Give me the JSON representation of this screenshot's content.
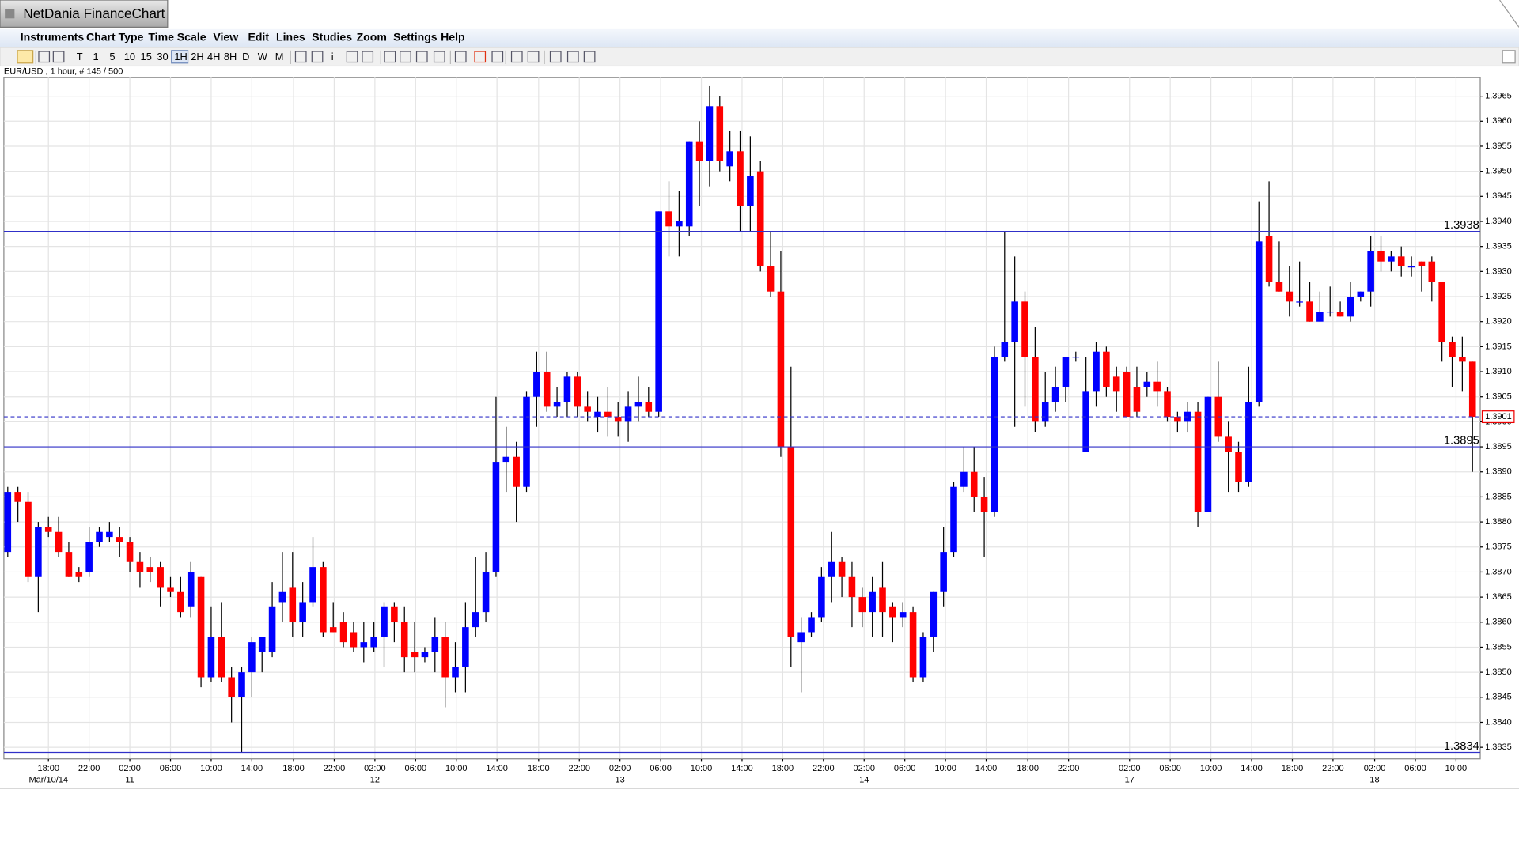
{
  "app": {
    "title": "NetDania FinanceChart",
    "menu": [
      "Instruments",
      "Chart Type",
      "Time Scale",
      "View",
      "Edit",
      "Lines",
      "Studies",
      "Zoom",
      "Settings",
      "Help"
    ],
    "toolbar": [
      "T",
      "1",
      "5",
      "10",
      "15",
      "30",
      "1H",
      "2H",
      "4H",
      "8H",
      "D",
      "W",
      "M",
      "i"
    ]
  },
  "chart_data": {
    "type": "candlestick",
    "title": "EUR/USD , 1 hour, # 145 / 500",
    "up_color": "#0000ff",
    "down_color": "#ff0000",
    "grid": true,
    "ylim": [
      1.38327,
      1.39687
    ],
    "yticks": [
      1.3835,
      {
        "value": 1.384,
        "label": "1.3840"
      },
      1.3845,
      {
        "value": 1.385,
        "label": "1.3850"
      },
      1.3855,
      {
        "value": 1.386,
        "label": "1.3860"
      },
      1.3865,
      {
        "value": 1.387,
        "label": "1.3870"
      },
      1.3875,
      {
        "value": 1.388,
        "label": "1.3880"
      },
      1.3885,
      {
        "value": 1.389,
        "label": "1.3890"
      },
      1.3895,
      {
        "value": 1.39,
        "label": "1.3900"
      },
      1.3905,
      {
        "value": 1.391,
        "label": "1.3910"
      },
      1.3915,
      {
        "value": 1.392,
        "label": "1.3920"
      },
      1.3925,
      {
        "value": 1.393,
        "label": "1.3930"
      },
      1.3935,
      {
        "value": 1.394,
        "label": "1.3940"
      },
      1.3945,
      {
        "value": 1.395,
        "label": "1.3950"
      },
      1.3955,
      {
        "value": 1.396,
        "label": "1.3960"
      },
      1.3965
    ],
    "x": [
      "18:00",
      "22:00",
      "02:00",
      "06:00",
      "10:00",
      "14:00",
      "18:00",
      "22:00",
      "02:00",
      "06:00",
      "10:00",
      "14:00",
      "18:00",
      "22:00",
      "02:00",
      "06:00",
      "10:00",
      "14:00",
      "18:00",
      "22:00",
      "02:00",
      "06:00",
      "10:00",
      "14:00",
      "18:00",
      "22:00",
      "02:00",
      "06:00",
      "10:00",
      "14:00",
      "18:00",
      "22:00",
      "02:00",
      "06:00",
      "10:00"
    ],
    "x_dates": [
      "Mar/10/14",
      null,
      "11",
      null,
      null,
      null,
      null,
      null,
      "12",
      null,
      null,
      null,
      null,
      null,
      "13",
      null,
      null,
      null,
      null,
      null,
      "14",
      null,
      null,
      null,
      null,
      null,
      "17",
      null,
      null,
      null,
      null,
      null,
      "18",
      null,
      null
    ],
    "lines": [
      {
        "value": 1.3938
      },
      {
        "value": 1.3895
      },
      {
        "value": 1.3834
      }
    ],
    "last": 1.3901,
    "last_label": "1.3901",
    "ohlc": [
      [
        1.3874,
        1.3887,
        1.3873,
        1.3886
      ],
      [
        1.3886,
        1.3887,
        1.388,
        1.3884
      ],
      [
        1.3884,
        1.3886,
        1.3868,
        1.3869
      ],
      [
        1.3869,
        1.388,
        1.3862,
        1.3879
      ],
      [
        1.3879,
        1.3881,
        1.3877,
        1.3878
      ],
      [
        1.3878,
        1.3881,
        1.3873,
        1.3874
      ],
      [
        1.3874,
        1.3876,
        1.3869,
        1.3869
      ],
      [
        1.387,
        1.3871,
        1.3868,
        1.3869
      ],
      [
        1.387,
        1.3879,
        1.3869,
        1.3876
      ],
      [
        1.3876,
        1.3879,
        1.3875,
        1.3878
      ],
      [
        1.3877,
        1.388,
        1.3876,
        1.3878
      ],
      [
        1.3877,
        1.3879,
        1.3873,
        1.3876
      ],
      [
        1.3876,
        1.3877,
        1.387,
        1.3872
      ],
      [
        1.3872,
        1.3874,
        1.3867,
        1.387
      ],
      [
        1.3871,
        1.3873,
        1.3868,
        1.387
      ],
      [
        1.3871,
        1.3872,
        1.3863,
        1.3867
      ],
      [
        1.3867,
        1.3869,
        1.3865,
        1.3866
      ],
      [
        1.3866,
        1.3869,
        1.3861,
        1.3862
      ],
      [
        1.3863,
        1.3872,
        1.3861,
        1.387
      ],
      [
        1.3869,
        1.3869,
        1.3847,
        1.3849
      ],
      [
        1.3849,
        1.3863,
        1.3848,
        1.3857
      ],
      [
        1.3857,
        1.3864,
        1.3848,
        1.3849
      ],
      [
        1.3849,
        1.3851,
        1.384,
        1.3845
      ],
      [
        1.3845,
        1.3851,
        1.3834,
        1.385
      ],
      [
        1.385,
        1.3857,
        1.3845,
        1.3856
      ],
      [
        1.3854,
        1.3857,
        1.385,
        1.3857
      ],
      [
        1.3854,
        1.3868,
        1.3853,
        1.3863
      ],
      [
        1.3864,
        1.3874,
        1.386,
        1.3866
      ],
      [
        1.3867,
        1.3874,
        1.3857,
        1.386
      ],
      [
        1.386,
        1.3868,
        1.3857,
        1.3864
      ],
      [
        1.3864,
        1.3877,
        1.3863,
        1.3871
      ],
      [
        1.3871,
        1.3872,
        1.3857,
        1.3858
      ],
      [
        1.3859,
        1.3864,
        1.3858,
        1.3858
      ],
      [
        1.386,
        1.3862,
        1.3855,
        1.3856
      ],
      [
        1.3858,
        1.386,
        1.3854,
        1.3855
      ],
      [
        1.3855,
        1.386,
        1.3852,
        1.3856
      ],
      [
        1.3855,
        1.386,
        1.3854,
        1.3857
      ],
      [
        1.3857,
        1.3864,
        1.3851,
        1.3863
      ],
      [
        1.3863,
        1.3864,
        1.3856,
        1.386
      ],
      [
        1.386,
        1.3863,
        1.385,
        1.3853
      ],
      [
        1.3854,
        1.386,
        1.385,
        1.3853
      ],
      [
        1.3853,
        1.3855,
        1.3852,
        1.3854
      ],
      [
        1.3854,
        1.3861,
        1.385,
        1.3857
      ],
      [
        1.3857,
        1.386,
        1.3843,
        1.3849
      ],
      [
        1.3849,
        1.3856,
        1.3846,
        1.3851
      ],
      [
        1.3851,
        1.3864,
        1.3846,
        1.3859
      ],
      [
        1.3859,
        1.3873,
        1.3857,
        1.3862
      ],
      [
        1.3862,
        1.3874,
        1.386,
        1.387
      ],
      [
        1.387,
        1.3905,
        1.3869,
        1.3892
      ],
      [
        1.3892,
        1.3899,
        1.3886,
        1.3893
      ],
      [
        1.3893,
        1.3896,
        1.388,
        1.3887
      ],
      [
        1.3887,
        1.3906,
        1.3886,
        1.3905
      ],
      [
        1.3905,
        1.3914,
        1.3899,
        1.391
      ],
      [
        1.391,
        1.3914,
        1.3902,
        1.3903
      ],
      [
        1.3903,
        1.3907,
        1.3901,
        1.3904
      ],
      [
        1.3904,
        1.391,
        1.3901,
        1.3909
      ],
      [
        1.3909,
        1.391,
        1.3901,
        1.3903
      ],
      [
        1.3903,
        1.3906,
        1.39,
        1.3902
      ],
      [
        1.3901,
        1.3905,
        1.3898,
        1.3902
      ],
      [
        1.3902,
        1.3907,
        1.3897,
        1.3901
      ],
      [
        1.3901,
        1.3904,
        1.3897,
        1.39
      ],
      [
        1.39,
        1.3906,
        1.3896,
        1.3903
      ],
      [
        1.3903,
        1.3909,
        1.39,
        1.3904
      ],
      [
        1.3904,
        1.3907,
        1.3901,
        1.3902
      ],
      [
        1.3902,
        1.3942,
        1.3901,
        1.3942
      ],
      [
        1.3942,
        1.3948,
        1.3933,
        1.3939
      ],
      [
        1.3939,
        1.3946,
        1.3933,
        1.394
      ],
      [
        1.3939,
        1.3956,
        1.3937,
        1.3956
      ],
      [
        1.3956,
        1.396,
        1.3943,
        1.3952
      ],
      [
        1.3952,
        1.3967,
        1.3947,
        1.3963
      ],
      [
        1.3963,
        1.3965,
        1.395,
        1.3952
      ],
      [
        1.3951,
        1.3958,
        1.3948,
        1.3954
      ],
      [
        1.3954,
        1.3958,
        1.3938,
        1.3943
      ],
      [
        1.3943,
        1.3957,
        1.3938,
        1.3949
      ],
      [
        1.395,
        1.3952,
        1.393,
        1.3931
      ],
      [
        1.3931,
        1.3938,
        1.3925,
        1.3926
      ],
      [
        1.3926,
        1.3934,
        1.3893,
        1.3895
      ],
      [
        1.3895,
        1.3911,
        1.3851,
        1.3857
      ],
      [
        1.3856,
        1.3861,
        1.3846,
        1.3858
      ],
      [
        1.3858,
        1.3862,
        1.3857,
        1.3861
      ],
      [
        1.3861,
        1.3871,
        1.386,
        1.3869
      ],
      [
        1.3869,
        1.3878,
        1.3864,
        1.3872
      ],
      [
        1.3872,
        1.3873,
        1.3865,
        1.3869
      ],
      [
        1.3869,
        1.3872,
        1.3859,
        1.3865
      ],
      [
        1.3865,
        1.3867,
        1.3859,
        1.3862
      ],
      [
        1.3862,
        1.3869,
        1.3857,
        1.3866
      ],
      [
        1.3867,
        1.3872,
        1.3857,
        1.3862
      ],
      [
        1.3863,
        1.3864,
        1.3856,
        1.3861
      ],
      [
        1.3861,
        1.3864,
        1.3859,
        1.3862
      ],
      [
        1.3862,
        1.3863,
        1.3848,
        1.3849
      ],
      [
        1.3849,
        1.3858,
        1.3848,
        1.3857
      ],
      [
        1.3857,
        1.3866,
        1.3854,
        1.3866
      ],
      [
        1.3866,
        1.3879,
        1.3863,
        1.3874
      ],
      [
        1.3874,
        1.3888,
        1.3873,
        1.3887
      ],
      [
        1.3887,
        1.3895,
        1.3886,
        1.389
      ],
      [
        1.389,
        1.3895,
        1.3882,
        1.3885
      ],
      [
        1.3885,
        1.3889,
        1.3873,
        1.3882
      ],
      [
        1.3882,
        1.3915,
        1.3881,
        1.3913
      ],
      [
        1.3913,
        1.3938,
        1.3912,
        1.3916
      ],
      [
        1.3916,
        1.3933,
        1.3899,
        1.3924
      ],
      [
        1.3924,
        1.3926,
        1.3903,
        1.3913
      ],
      [
        1.3913,
        1.3919,
        1.3898,
        1.39
      ],
      [
        1.39,
        1.391,
        1.3899,
        1.3904
      ],
      [
        1.3904,
        1.3911,
        1.3902,
        1.3907
      ],
      [
        1.3907,
        1.3913,
        1.3904,
        1.3913
      ],
      [
        1.3913,
        1.3914,
        1.3912,
        1.3913
      ],
      [
        1.3894,
        1.3913,
        1.3894,
        1.3906
      ],
      [
        1.3906,
        1.3916,
        1.3903,
        1.3914
      ],
      [
        1.3914,
        1.3915,
        1.3905,
        1.3907
      ],
      [
        1.3909,
        1.3911,
        1.3902,
        1.3906
      ],
      [
        1.391,
        1.3911,
        1.3901,
        1.3901
      ],
      [
        1.3907,
        1.3911,
        1.3901,
        1.3902
      ],
      [
        1.3907,
        1.391,
        1.3905,
        1.3908
      ],
      [
        1.3908,
        1.3912,
        1.3903,
        1.3906
      ],
      [
        1.3906,
        1.3907,
        1.39,
        1.3901
      ],
      [
        1.3901,
        1.3902,
        1.3898,
        1.39
      ],
      [
        1.39,
        1.3904,
        1.3898,
        1.3902
      ],
      [
        1.3902,
        1.3904,
        1.3879,
        1.3882
      ],
      [
        1.3882,
        1.3905,
        1.3882,
        1.3905
      ],
      [
        1.3905,
        1.3912,
        1.3896,
        1.3897
      ],
      [
        1.3897,
        1.39,
        1.3886,
        1.3894
      ],
      [
        1.3894,
        1.3896,
        1.3886,
        1.3888
      ],
      [
        1.3888,
        1.3911,
        1.3887,
        1.3904
      ],
      [
        1.3904,
        1.3944,
        1.3903,
        1.3936
      ],
      [
        1.3937,
        1.3948,
        1.3927,
        1.3928
      ],
      [
        1.3928,
        1.3936,
        1.3926,
        1.3926
      ],
      [
        1.3926,
        1.3931,
        1.3921,
        1.3924
      ],
      [
        1.3924,
        1.3932,
        1.3923,
        1.3924
      ],
      [
        1.3924,
        1.3928,
        1.392,
        1.392
      ],
      [
        1.392,
        1.3926,
        1.392,
        1.3922
      ],
      [
        1.3922,
        1.3927,
        1.3921,
        1.3922
      ],
      [
        1.3922,
        1.3924,
        1.3921,
        1.3921
      ],
      [
        1.3921,
        1.3928,
        1.392,
        1.3925
      ],
      [
        1.3925,
        1.3926,
        1.3924,
        1.3926
      ],
      [
        1.3926,
        1.3937,
        1.3923,
        1.3934
      ],
      [
        1.3934,
        1.3937,
        1.393,
        1.3932
      ],
      [
        1.3932,
        1.3934,
        1.393,
        1.3933
      ],
      [
        1.3933,
        1.3935,
        1.3929,
        1.3931
      ],
      [
        1.3931,
        1.3933,
        1.3929,
        1.3931
      ],
      [
        1.3932,
        1.3932,
        1.3926,
        1.3931
      ],
      [
        1.3932,
        1.3933,
        1.3924,
        1.3928
      ],
      [
        1.3928,
        1.3928,
        1.3912,
        1.3916
      ],
      [
        1.3916,
        1.3917,
        1.3907,
        1.3913
      ],
      [
        1.3913,
        1.3917,
        1.3906,
        1.3912
      ],
      [
        1.3912,
        1.3912,
        1.389,
        1.3901
      ]
    ]
  }
}
